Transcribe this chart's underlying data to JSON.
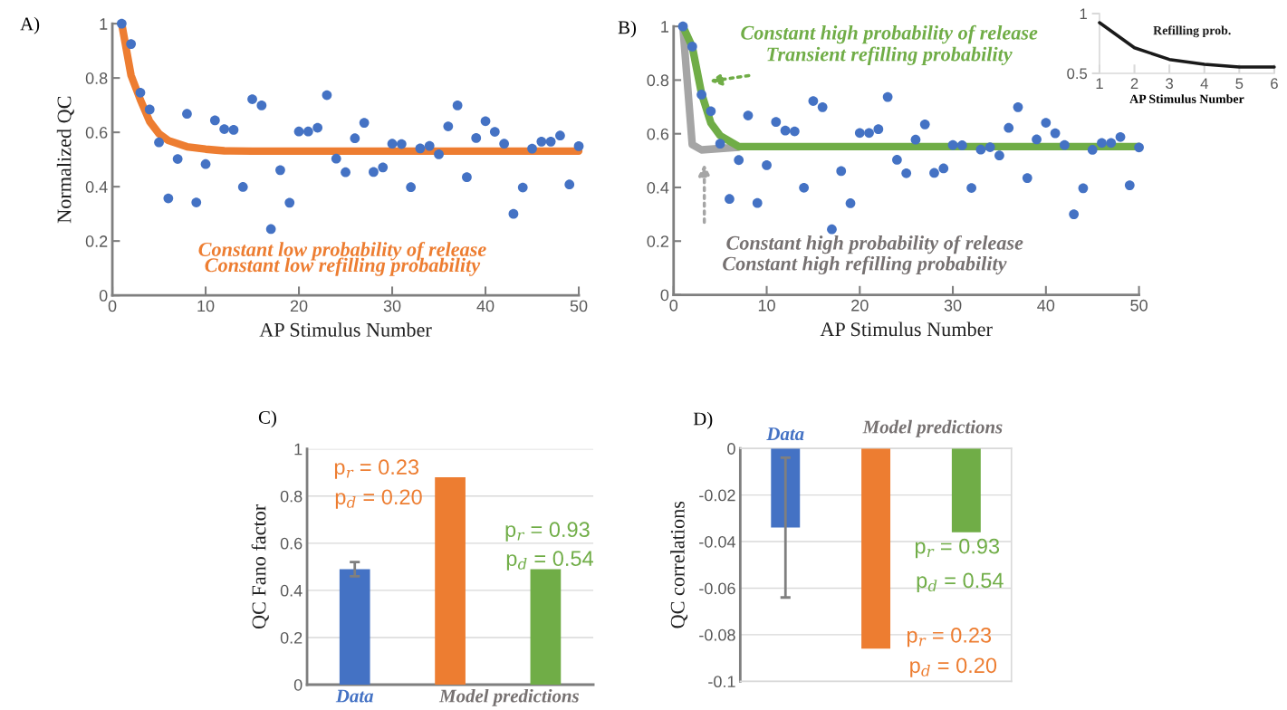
{
  "chart_data": [
    {
      "type": "scatter",
      "title": "A)",
      "xlabel": "AP Stimulus Number",
      "ylabel": "Normalized QC",
      "x": [
        1,
        2,
        3,
        4,
        5,
        6,
        7,
        8,
        9,
        10,
        11,
        12,
        13,
        14,
        15,
        16,
        17,
        18,
        19,
        20,
        21,
        22,
        23,
        24,
        25,
        26,
        27,
        28,
        29,
        30,
        31,
        32,
        33,
        34,
        35,
        36,
        37,
        38,
        39,
        40,
        41,
        42,
        43,
        44,
        45,
        46,
        47,
        48,
        49,
        50
      ],
      "series": [
        {
          "type": "scatter",
          "marker": "circle",
          "color": "#4472c4",
          "values": [
            1.0,
            0.925,
            0.746,
            0.684,
            0.563,
            0.357,
            0.502,
            0.668,
            0.342,
            0.483,
            0.644,
            0.612,
            0.609,
            0.399,
            0.722,
            0.699,
            0.244,
            0.461,
            0.341,
            0.603,
            0.603,
            0.617,
            0.737,
            0.503,
            0.453,
            0.578,
            0.635,
            0.454,
            0.471,
            0.558,
            0.557,
            0.398,
            0.541,
            0.55,
            0.519,
            0.622,
            0.699,
            0.435,
            0.579,
            0.641,
            0.602,
            0.558,
            0.3,
            0.397,
            0.54,
            0.566,
            0.566,
            0.588,
            0.408,
            0.549
          ]
        },
        {
          "type": "line",
          "color": "#ed7d31",
          "x": [
            1,
            2,
            3,
            4,
            5,
            6,
            8,
            10,
            12,
            15,
            50
          ],
          "values": [
            1.0,
            0.81,
            0.72,
            0.64,
            0.595,
            0.57,
            0.547,
            0.538,
            0.532,
            0.531,
            0.531
          ]
        }
      ],
      "xlim": [
        0,
        50
      ],
      "ylim": [
        0,
        1
      ],
      "xticks": [
        0,
        10,
        20,
        30,
        40,
        50
      ],
      "yticks": [
        0,
        0.2,
        0.4,
        0.6,
        0.8,
        1
      ],
      "grid": false,
      "annotations": [
        "Constant low probability of release",
        "Constant low refilling probability"
      ]
    },
    {
      "type": "scatter",
      "title": "B)",
      "xlabel": "AP Stimulus Number",
      "x": [
        1,
        2,
        3,
        4,
        5,
        6,
        7,
        8,
        9,
        10,
        11,
        12,
        13,
        14,
        15,
        16,
        17,
        18,
        19,
        20,
        21,
        22,
        23,
        24,
        25,
        26,
        27,
        28,
        29,
        30,
        31,
        32,
        33,
        34,
        35,
        36,
        37,
        38,
        39,
        40,
        41,
        42,
        43,
        44,
        45,
        46,
        47,
        48,
        49,
        50
      ],
      "series": [
        {
          "type": "line",
          "color": "#a5a5a5",
          "x": [
            1,
            2,
            3,
            7
          ],
          "values": [
            1.0,
            0.56,
            0.54,
            0.55
          ]
        },
        {
          "type": "line",
          "color": "#70ad47",
          "x": [
            1,
            2,
            3,
            4,
            5,
            7,
            50
          ],
          "values": [
            1.0,
            0.925,
            0.75,
            0.64,
            0.593,
            0.552,
            0.552
          ]
        },
        {
          "type": "scatter",
          "marker": "circle",
          "color": "#4472c4",
          "values": [
            1.0,
            0.925,
            0.746,
            0.684,
            0.563,
            0.357,
            0.502,
            0.668,
            0.342,
            0.483,
            0.644,
            0.612,
            0.609,
            0.399,
            0.722,
            0.699,
            0.244,
            0.461,
            0.341,
            0.603,
            0.603,
            0.617,
            0.737,
            0.503,
            0.453,
            0.578,
            0.635,
            0.454,
            0.471,
            0.558,
            0.557,
            0.398,
            0.541,
            0.55,
            0.519,
            0.622,
            0.699,
            0.435,
            0.579,
            0.641,
            0.602,
            0.558,
            0.3,
            0.397,
            0.54,
            0.566,
            0.566,
            0.588,
            0.408,
            0.549
          ]
        }
      ],
      "xlim": [
        0,
        50
      ],
      "ylim": [
        0,
        1
      ],
      "xticks": [
        0,
        10,
        20,
        30,
        40,
        50
      ],
      "yticks": [
        0,
        0.2,
        0.4,
        0.6,
        0.8,
        1
      ],
      "grid": false,
      "annotations": [
        "Constant high probability of release",
        "Transient refilling probability",
        "Constant high probability of release",
        "Constant high refilling probability"
      ]
    },
    {
      "type": "line",
      "xlabel": "AP Stimulus Number",
      "x": [
        1,
        2,
        3,
        4,
        5,
        6
      ],
      "series": [
        {
          "color": "#1a1a1a",
          "values": [
            0.924,
            0.714,
            0.616,
            0.576,
            0.553,
            0.553
          ]
        }
      ],
      "xlim": [
        1,
        6
      ],
      "ylim": [
        0.5,
        1
      ],
      "xticks": [
        1,
        2,
        3,
        4,
        5,
        6
      ],
      "yticks": [
        0.5,
        1
      ],
      "grid": false,
      "annotations": [
        "Refilling prob."
      ]
    },
    {
      "type": "bar",
      "title": "C)",
      "ylabel": "QC Fano factor",
      "categories": [
        "Data",
        null,
        null
      ],
      "values": [
        0.49,
        0.88,
        0.49
      ],
      "errors": [
        0.03,
        null,
        null
      ],
      "colors": [
        "#4472c4",
        "#ed7d31",
        "#70ad47"
      ],
      "ylim": [
        0,
        1
      ],
      "yticks": [
        0,
        0.2,
        0.4,
        0.6,
        0.8,
        1
      ],
      "grid": "y",
      "annotations": [
        "Model predictions",
        "p$_{r}$ = 0.23",
        "p$_{d}$ = 0.20",
        "p$_{r}$ = 0.93",
        "p$_{d}$ = 0.54"
      ]
    },
    {
      "type": "bar",
      "title": "D)",
      "ylabel": "QC correlations",
      "categories": [
        "Data",
        null,
        null
      ],
      "values": [
        -0.034,
        -0.086,
        -0.036
      ],
      "errors": [
        0.03,
        null,
        null
      ],
      "colors": [
        "#4472c4",
        "#ed7d31",
        "#70ad47"
      ],
      "ylim": [
        -0.1,
        0
      ],
      "yticks": [
        -0.1,
        -0.08,
        -0.06,
        -0.04,
        -0.02,
        0
      ],
      "grid": "y",
      "annotations": [
        "Model predictions",
        "p$_{r}$ = 0.93",
        "p$_{d}$ = 0.54",
        "p$_{r}$ = 0.23",
        "p$_{d}$ = 0.20"
      ]
    }
  ]
}
